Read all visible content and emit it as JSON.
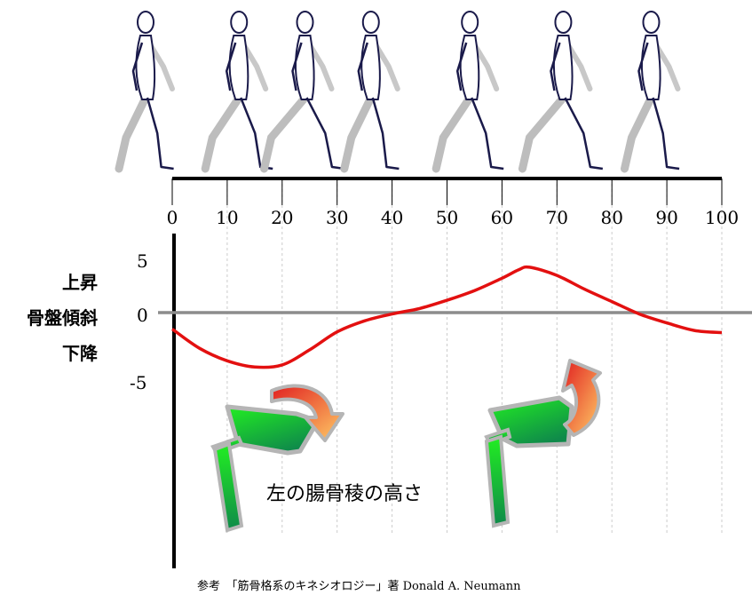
{
  "chart_data": {
    "type": "line",
    "gait_axis": {
      "ticks": [
        0,
        10,
        20,
        30,
        40,
        50,
        60,
        70,
        80,
        90,
        100
      ],
      "tick_labels": [
        "0",
        "10",
        "20",
        "30",
        "40",
        "50",
        "60",
        "70",
        "80",
        "90",
        "100"
      ]
    },
    "y_axis": {
      "label_upper": "上昇",
      "label_main": "骨盤傾斜",
      "label_lower": "下降",
      "ticks": [
        5,
        0,
        -5
      ],
      "tick_labels": [
        "5",
        "0",
        "-5"
      ],
      "ylim": [
        -5,
        5
      ]
    },
    "series": [
      {
        "color": "#e31010",
        "x": [
          0,
          5,
          10,
          15,
          20,
          25,
          30,
          35,
          40,
          45,
          50,
          55,
          60,
          63,
          65,
          70,
          75,
          80,
          85,
          90,
          95,
          100
        ],
        "y": [
          -1.2,
          -2.6,
          -3.5,
          -3.95,
          -3.8,
          -2.7,
          -1.4,
          -0.6,
          -0.1,
          0.3,
          0.9,
          1.6,
          2.5,
          3.1,
          3.3,
          2.7,
          1.7,
          0.8,
          -0.1,
          -0.75,
          -1.3,
          -1.45
        ]
      }
    ],
    "walking_figures_at": [
      0,
      17,
      29,
      41,
      59,
      76,
      92
    ],
    "grid": "vertical dashed lines at each 10%",
    "colors": {
      "curve": "#e31010",
      "zero_line": "#8c8c8c",
      "grid": "#cccccc",
      "axis": "#000000",
      "pelvis_fill_start": "#22ee22",
      "pelvis_fill_end": "#0f8a4a",
      "arrow_start": "#e12020",
      "arrow_end": "#ffcc66"
    },
    "annotation": "左の腸骨稜の高さ"
  },
  "reference": "参考　「筋骨格系のキネシオロジー」著 Donald A. Neumann"
}
